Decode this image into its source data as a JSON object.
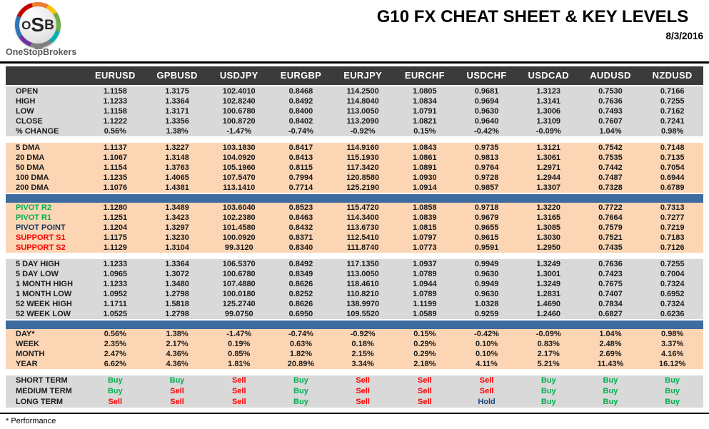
{
  "page": {
    "title": "G10 FX CHEAT SHEET & KEY LEVELS",
    "date": "8/3/2016",
    "footnote": "* Performance"
  },
  "logo": {
    "l1": "O",
    "l2": "S",
    "l3": "B",
    "brand": "OneStopBrokers"
  },
  "colors": {
    "header_bg": "#3b3b3b",
    "gray": "#d9d9d9",
    "peach": "#fcd5b4",
    "blue": "#3e6b9f",
    "buy": "#00b050",
    "sell": "#ff0000",
    "hold": "#1f497d",
    "green_label": "#00b050",
    "red_label": "#ff0000",
    "navy_label": "#17375e"
  },
  "table": {
    "columns": [
      "EURUSD",
      "GPBUSD",
      "USDJPY",
      "EURGBP",
      "EURJPY",
      "EURCHF",
      "USDCHF",
      "USDCAD",
      "AUDUSD",
      "NZDUSD"
    ],
    "sections": [
      {
        "id": "prices",
        "bg": "gray",
        "before": "none",
        "rows": [
          {
            "label": "OPEN",
            "values": [
              "1.1158",
              "1.3175",
              "102.4010",
              "0.8468",
              "114.2500",
              "1.0805",
              "0.9681",
              "1.3123",
              "0.7530",
              "0.7166"
            ]
          },
          {
            "label": "HIGH",
            "values": [
              "1.1233",
              "1.3364",
              "102.8240",
              "0.8492",
              "114.8040",
              "1.0834",
              "0.9694",
              "1.3141",
              "0.7636",
              "0.7255"
            ]
          },
          {
            "label": "LOW",
            "values": [
              "1.1158",
              "1.3171",
              "100.6780",
              "0.8400",
              "113.0050",
              "1.0791",
              "0.9630",
              "1.3006",
              "0.7493",
              "0.7162"
            ]
          },
          {
            "label": "CLOSE",
            "values": [
              "1.1222",
              "1.3356",
              "100.8720",
              "0.8402",
              "113.2090",
              "1.0821",
              "0.9640",
              "1.3109",
              "0.7607",
              "0.7241"
            ]
          },
          {
            "label": "% CHANGE",
            "values": [
              "0.56%",
              "1.38%",
              "-1.47%",
              "-0.74%",
              "-0.92%",
              "0.15%",
              "-0.42%",
              "-0.09%",
              "1.04%",
              "0.98%"
            ]
          }
        ]
      },
      {
        "id": "dma",
        "bg": "peach",
        "before": "gap",
        "rows": [
          {
            "label": "5 DMA",
            "values": [
              "1.1137",
              "1.3227",
              "103.1830",
              "0.8417",
              "114.9160",
              "1.0843",
              "0.9735",
              "1.3121",
              "0.7542",
              "0.7148"
            ]
          },
          {
            "label": "20 DMA",
            "values": [
              "1.1067",
              "1.3148",
              "104.0920",
              "0.8413",
              "115.1930",
              "1.0861",
              "0.9813",
              "1.3061",
              "0.7535",
              "0.7135"
            ]
          },
          {
            "label": "50 DMA",
            "values": [
              "1.1154",
              "1.3763",
              "105.1960",
              "0.8115",
              "117.3420",
              "1.0891",
              "0.9764",
              "1.2971",
              "0.7442",
              "0.7054"
            ]
          },
          {
            "label": "100 DMA",
            "values": [
              "1.1235",
              "1.4065",
              "107.5470",
              "0.7994",
              "120.8580",
              "1.0930",
              "0.9728",
              "1.2944",
              "0.7487",
              "0.6944"
            ]
          },
          {
            "label": "200 DMA",
            "values": [
              "1.1076",
              "1.4381",
              "113.1410",
              "0.7714",
              "125.2190",
              "1.0914",
              "0.9857",
              "1.3307",
              "0.7328",
              "0.6789"
            ]
          }
        ]
      },
      {
        "id": "pivots",
        "bg": "peach",
        "before": "blue",
        "rows": [
          {
            "label": "PIVOT R2",
            "label_color": "green",
            "values": [
              "1.1280",
              "1.3489",
              "103.6040",
              "0.8523",
              "115.4720",
              "1.0858",
              "0.9718",
              "1.3220",
              "0.7722",
              "0.7313"
            ]
          },
          {
            "label": "PIVOT R1",
            "label_color": "green",
            "values": [
              "1.1251",
              "1.3423",
              "102.2380",
              "0.8463",
              "114.3400",
              "1.0839",
              "0.9679",
              "1.3165",
              "0.7664",
              "0.7277"
            ]
          },
          {
            "label": "PIVOT POINT",
            "label_color": "navy",
            "values": [
              "1.1204",
              "1.3297",
              "101.4580",
              "0.8432",
              "113.6730",
              "1.0815",
              "0.9655",
              "1.3085",
              "0.7579",
              "0.7219"
            ]
          },
          {
            "label": "SUPPORT S1",
            "label_color": "red",
            "values": [
              "1.1175",
              "1.3230",
              "100.0920",
              "0.8371",
              "112.5410",
              "1.0797",
              "0.9615",
              "1.3030",
              "0.7521",
              "0.7183"
            ]
          },
          {
            "label": "SUPPORT S2",
            "label_color": "red",
            "values": [
              "1.1129",
              "1.3104",
              "99.3120",
              "0.8340",
              "111.8740",
              "1.0773",
              "0.9591",
              "1.2950",
              "0.7435",
              "0.7126"
            ]
          }
        ]
      },
      {
        "id": "ranges",
        "bg": "gray",
        "before": "gap",
        "rows": [
          {
            "label": "5 DAY HIGH",
            "values": [
              "1.1233",
              "1.3364",
              "106.5370",
              "0.8492",
              "117.1350",
              "1.0937",
              "0.9949",
              "1.3249",
              "0.7636",
              "0.7255"
            ]
          },
          {
            "label": "5 DAY LOW",
            "values": [
              "1.0965",
              "1.3072",
              "100.6780",
              "0.8349",
              "113.0050",
              "1.0789",
              "0.9630",
              "1.3001",
              "0.7423",
              "0.7004"
            ]
          },
          {
            "label": "1 MONTH HIGH",
            "values": [
              "1.1233",
              "1.3480",
              "107.4880",
              "0.8626",
              "118.4610",
              "1.0944",
              "0.9949",
              "1.3249",
              "0.7675",
              "0.7324"
            ]
          },
          {
            "label": "1 MONTH LOW",
            "values": [
              "1.0952",
              "1.2798",
              "100.0180",
              "0.8252",
              "110.8210",
              "1.0789",
              "0.9630",
              "1.2831",
              "0.7407",
              "0.6952"
            ]
          },
          {
            "label": "52 WEEK HIGH",
            "values": [
              "1.1711",
              "1.5818",
              "125.2740",
              "0.8626",
              "138.9970",
              "1.1199",
              "1.0328",
              "1.4690",
              "0.7834",
              "0.7324"
            ]
          },
          {
            "label": "52 WEEK LOW",
            "values": [
              "1.0525",
              "1.2798",
              "99.0750",
              "0.6950",
              "109.5520",
              "1.0589",
              "0.9259",
              "1.2460",
              "0.6827",
              "0.6236"
            ]
          }
        ]
      },
      {
        "id": "performance",
        "bg": "peach",
        "before": "blue",
        "rows": [
          {
            "label": "DAY*",
            "values": [
              "0.56%",
              "1.38%",
              "-1.47%",
              "-0.74%",
              "-0.92%",
              "0.15%",
              "-0.42%",
              "-0.09%",
              "1.04%",
              "0.98%"
            ]
          },
          {
            "label": "WEEK",
            "values": [
              "2.35%",
              "2.17%",
              "0.19%",
              "0.63%",
              "0.18%",
              "0.29%",
              "0.10%",
              "0.83%",
              "2.48%",
              "3.37%"
            ]
          },
          {
            "label": "MONTH",
            "values": [
              "2.47%",
              "4.36%",
              "0.85%",
              "1.82%",
              "2.15%",
              "0.29%",
              "0.10%",
              "2.17%",
              "2.69%",
              "4.16%"
            ]
          },
          {
            "label": "YEAR",
            "values": [
              "6.62%",
              "4.36%",
              "1.81%",
              "20.89%",
              "3.34%",
              "2.18%",
              "4.11%",
              "5.21%",
              "11.43%",
              "16.12%"
            ]
          }
        ]
      },
      {
        "id": "signals",
        "bg": "gray",
        "before": "gap",
        "value_type": "signal",
        "rows": [
          {
            "label": "SHORT TERM",
            "values": [
              "Buy",
              "Buy",
              "Sell",
              "Buy",
              "Sell",
              "Sell",
              "Sell",
              "Buy",
              "Buy",
              "Buy"
            ]
          },
          {
            "label": "MEDIUM TERM",
            "values": [
              "Buy",
              "Sell",
              "Sell",
              "Buy",
              "Sell",
              "Sell",
              "Sell",
              "Buy",
              "Buy",
              "Buy"
            ]
          },
          {
            "label": "LONG TERM",
            "values": [
              "Sell",
              "Sell",
              "Sell",
              "Buy",
              "Sell",
              "Sell",
              "Hold",
              "Buy",
              "Buy",
              "Buy"
            ]
          }
        ]
      }
    ]
  }
}
